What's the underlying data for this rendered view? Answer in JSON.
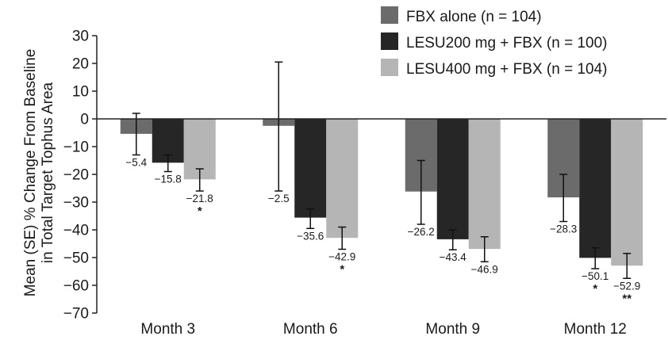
{
  "chart_data": {
    "type": "bar",
    "ylabel_lines": [
      "Mean (SE) % Change From Baseline",
      "in Total Target Tophus Area"
    ],
    "ylim": [
      -70,
      30
    ],
    "yticks": [
      "30",
      "20",
      "10",
      "0",
      "−10",
      "−20",
      "−30",
      "−40",
      "−50",
      "−60",
      "−70"
    ],
    "categories": [
      "Month 3",
      "Month 6",
      "Month 9",
      "Month 12"
    ],
    "legend_position": "top-right",
    "series": [
      {
        "name": "FBX alone (n = 104)",
        "color": "#6b6b6b",
        "values": [
          -5.4,
          -2.5,
          -26.2,
          -28.3
        ],
        "labels": [
          "−5.4",
          "−2.5",
          "−26.2",
          "−28.3"
        ],
        "err_low": [
          -13,
          -26,
          -38,
          -37
        ],
        "err_high": [
          2,
          20.5,
          -15,
          -20
        ],
        "sig": [
          "",
          "",
          "",
          ""
        ]
      },
      {
        "name": "LESU200 mg + FBX (n = 100)",
        "color": "#262626",
        "values": [
          -15.8,
          -35.6,
          -43.4,
          -50.1
        ],
        "labels": [
          "−15.8",
          "−35.6",
          "−43.4",
          "−50.1"
        ],
        "err_low": [
          -19,
          -39.5,
          -47.2,
          -54
        ],
        "err_high": [
          -13,
          -32.5,
          -40,
          -46.5
        ],
        "sig": [
          "",
          "",
          "",
          "*"
        ]
      },
      {
        "name": "LESU400 mg + FBX (n = 104)",
        "color": "#b5b5b5",
        "values": [
          -21.8,
          -42.9,
          -46.9,
          -52.9
        ],
        "labels": [
          "−21.8",
          "−42.9",
          "−46.9",
          "−52.9"
        ],
        "err_low": [
          -26,
          -47,
          -51.5,
          -57.5
        ],
        "err_high": [
          -18,
          -39,
          -42.5,
          -48.5
        ],
        "sig": [
          "*",
          "*",
          "",
          "**"
        ]
      }
    ]
  }
}
